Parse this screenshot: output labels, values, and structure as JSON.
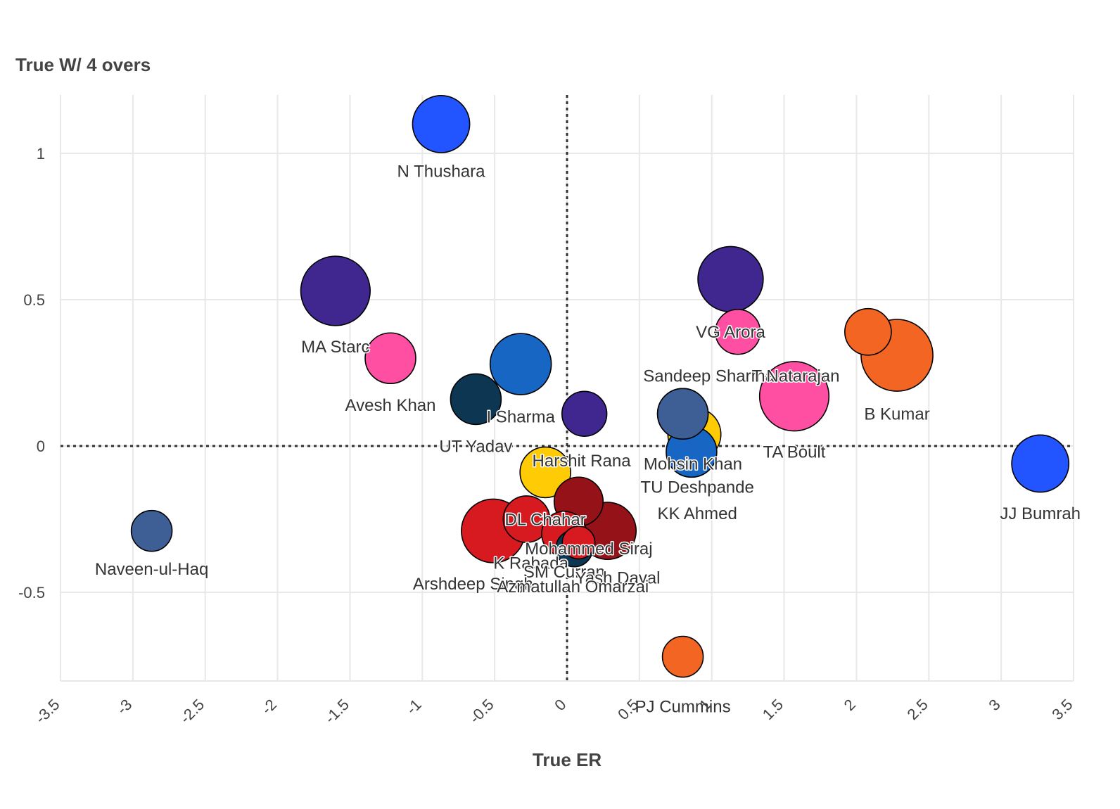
{
  "chart_data": {
    "type": "scatter",
    "title": "",
    "xlabel": "True ER",
    "ylabel": "True W/ 4 overs",
    "xlim": [
      -3.5,
      3.5
    ],
    "ylim": [
      -0.8,
      1.2
    ],
    "xticks": [
      "-3.5",
      "-3",
      "-2.5",
      "-2",
      "-1.5",
      "-1",
      "-0.5",
      "0",
      "0.5",
      "1",
      "1.5",
      "2",
      "2.5",
      "3",
      "3.5"
    ],
    "yticks": [
      "-0.5",
      "0",
      "0.5",
      "1"
    ],
    "grid": true,
    "reference_lines": {
      "x": 0,
      "y": 0,
      "style": "dotted"
    },
    "points": [
      {
        "label": "N Thushara",
        "x": -0.87,
        "y": 1.1,
        "size": 0.7,
        "color": "#2255ff"
      },
      {
        "label": "MA Starc",
        "x": -1.6,
        "y": 0.53,
        "size": 0.85,
        "color": "#3f278f"
      },
      {
        "label": "Avesh Khan",
        "x": -1.22,
        "y": 0.3,
        "size": 0.62,
        "color": "#ff4fa3"
      },
      {
        "label": "I Sharma",
        "x": -0.32,
        "y": 0.28,
        "size": 0.75,
        "color": "#1866c4"
      },
      {
        "label": "UT Yadav",
        "x": -0.63,
        "y": 0.16,
        "size": 0.62,
        "color": "#0c3652"
      },
      {
        "label": "",
        "x": 0.12,
        "y": 0.11,
        "size": 0.55,
        "color": "#3f278f"
      },
      {
        "label": "",
        "x": 1.13,
        "y": 0.57,
        "size": 0.8,
        "color": "#3f278f"
      },
      {
        "label": "VG Arora",
        "x": 1.18,
        "y": 0.39,
        "size": 0.55,
        "color": "#ff4fa3"
      },
      {
        "label": "B Kumar",
        "x": 2.28,
        "y": 0.31,
        "size": 0.88,
        "color": "#f26522"
      },
      {
        "label": "T Natarajan",
        "x": 2.08,
        "y": 0.39,
        "size": 0.57,
        "color": "#f26522"
      },
      {
        "label": "TA Boult",
        "x": 1.57,
        "y": 0.17,
        "size": 0.85,
        "color": "#ff4fa3"
      },
      {
        "label": "Sandeep Sharma",
        "x": 0.8,
        "y": 0.11,
        "size": 0.62,
        "color": "#3d5f96"
      },
      {
        "label": "Mohsin Khan",
        "x": 0.86,
        "y": -0.02,
        "size": 0.62,
        "color": "#1866c4"
      },
      {
        "label": "TU Deshpande",
        "x": 0.88,
        "y": 0.04,
        "size": 0.65,
        "color": "#ffcb05"
      },
      {
        "label": "KK Ahmed",
        "x": 0.8,
        "y": 0.11,
        "size": 0.62,
        "color": "#3d5f96"
      },
      {
        "label": "JJ Bumrah",
        "x": 3.27,
        "y": -0.06,
        "size": 0.7,
        "color": "#2255ff"
      },
      {
        "label": "Harshit Rana",
        "x": -0.15,
        "y": -0.09,
        "size": 0.62,
        "color": "#ffcb05"
      },
      {
        "label": "Naveen-ul-Haq",
        "x": -2.87,
        "y": -0.29,
        "size": 0.5,
        "color": "#3d5f96"
      },
      {
        "label": "Arshdeep Singh",
        "x": -0.51,
        "y": -0.29,
        "size": 0.78,
        "color": "#d71920"
      },
      {
        "label": "DL Chahar",
        "x": -0.28,
        "y": -0.25,
        "size": 0.57,
        "color": "#d71920"
      },
      {
        "label": "Mohammed Siraj",
        "x": 0.08,
        "y": -0.19,
        "size": 0.6,
        "color": "#951218"
      },
      {
        "label": "Yash Dayal",
        "x": 0.28,
        "y": -0.29,
        "size": 0.7,
        "color": "#951218"
      },
      {
        "label": "K Rabada",
        "x": -0.02,
        "y": -0.3,
        "size": 0.55,
        "color": "#d71920"
      },
      {
        "label": "SM Curran",
        "x": 0.05,
        "y": -0.35,
        "size": 0.45,
        "color": "#0c3652"
      },
      {
        "label": "Azmatullah Omarzai",
        "x": 0.08,
        "y": -0.33,
        "size": 0.4,
        "color": "#d71920"
      },
      {
        "label": "PJ Cummins",
        "x": 0.8,
        "y": -0.72,
        "size": 0.5,
        "color": "#f26522"
      }
    ],
    "labels": [
      {
        "text": "N Thushara",
        "x": -0.87,
        "y": 0.92
      },
      {
        "text": "MA Starc",
        "x": -1.6,
        "y": 0.32
      },
      {
        "text": "Avesh Khan",
        "x": -1.22,
        "y": 0.12
      },
      {
        "text": "I Sharma",
        "x": -0.32,
        "y": 0.08
      },
      {
        "text": "UT Yadav",
        "x": -0.63,
        "y": -0.02
      },
      {
        "text": "VG Arora",
        "x": 1.13,
        "y": 0.37
      },
      {
        "text": "Sandeep Sharma",
        "x": 0.98,
        "y": 0.22
      },
      {
        "text": "T Natarajan",
        "x": 1.58,
        "y": 0.22
      },
      {
        "text": "B Kumar",
        "x": 2.28,
        "y": 0.09
      },
      {
        "text": "TA Boult",
        "x": 1.57,
        "y": -0.04
      },
      {
        "text": "Harshit Rana",
        "x": 0.1,
        "y": -0.07
      },
      {
        "text": "Mohsin Khan",
        "x": 0.87,
        "y": -0.08
      },
      {
        "text": "TU Deshpande",
        "x": 0.9,
        "y": -0.16
      },
      {
        "text": "KK Ahmed",
        "x": 0.9,
        "y": -0.25
      },
      {
        "text": "JJ Bumrah",
        "x": 3.27,
        "y": -0.25
      },
      {
        "text": "Naveen-ul-Haq",
        "x": -2.87,
        "y": -0.44
      },
      {
        "text": "DL Chahar",
        "x": -0.15,
        "y": -0.27
      },
      {
        "text": "Mohammed Siraj",
        "x": 0.15,
        "y": -0.37
      },
      {
        "text": "K Rabada",
        "x": -0.25,
        "y": -0.42
      },
      {
        "text": "SM Curran",
        "x": -0.02,
        "y": -0.45
      },
      {
        "text": "Yash Dayal",
        "x": 0.35,
        "y": -0.47
      },
      {
        "text": "Arshdeep Singh",
        "x": -0.65,
        "y": -0.49
      },
      {
        "text": "Azmatullah Omarzai",
        "x": 0.04,
        "y": -0.5
      },
      {
        "text": "PJ Cummins",
        "x": 0.8,
        "y": -0.91
      }
    ]
  }
}
